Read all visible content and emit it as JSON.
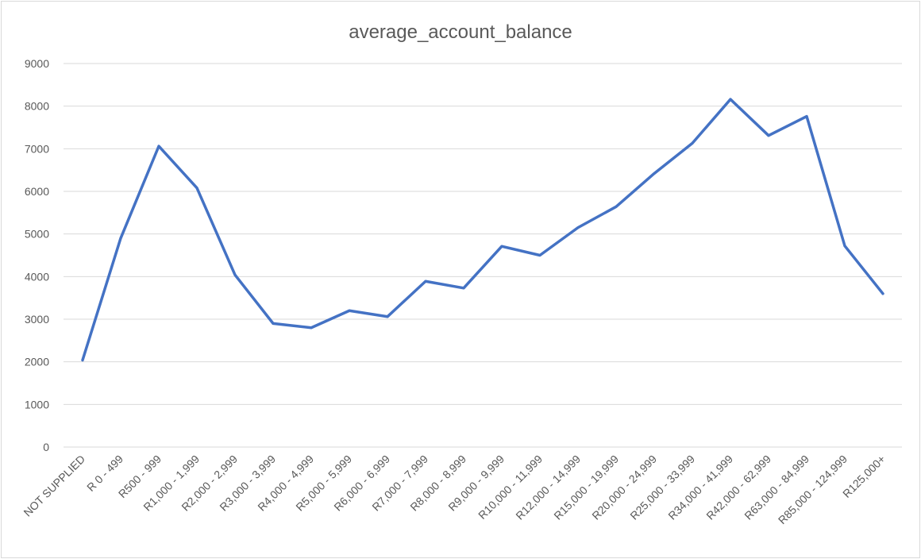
{
  "chart_data": {
    "type": "line",
    "title": "average_account_balance",
    "xlabel": "",
    "ylabel": "",
    "ylim": [
      0,
      9000
    ],
    "yticks": [
      0,
      1000,
      2000,
      3000,
      4000,
      5000,
      6000,
      7000,
      8000,
      9000
    ],
    "grid": true,
    "legend": "none",
    "line_color": "#4472C4",
    "categories": [
      "NOT SUPPLIED",
      "R 0 - 499",
      "R500 - 999",
      "R1,000 - 1,999",
      "R2,000 - 2,999",
      "R3,000 - 3,999",
      "R4,000 - 4,999",
      "R5,000 - 5,999",
      "R6,000 - 6,999",
      "R7,000 - 7,999",
      "R8,000 - 8,999",
      "R9,000 - 9,999",
      "R10,000 - 11,999",
      "R12,000 - 14,999",
      "R15,000 - 19,999",
      "R20,000 - 24,999",
      "R25,000 - 33,999",
      "R34,000 - 41,999",
      "R42,000 - 62,999",
      "R63,000 - 84,999",
      "R85,000 - 124,999",
      "R125,000+"
    ],
    "values": [
      2040,
      4900,
      7060,
      6080,
      4040,
      2900,
      2800,
      3200,
      3060,
      3890,
      3730,
      4710,
      4500,
      5150,
      5640,
      6420,
      7130,
      8160,
      7310,
      7760,
      4720,
      3600
    ]
  }
}
